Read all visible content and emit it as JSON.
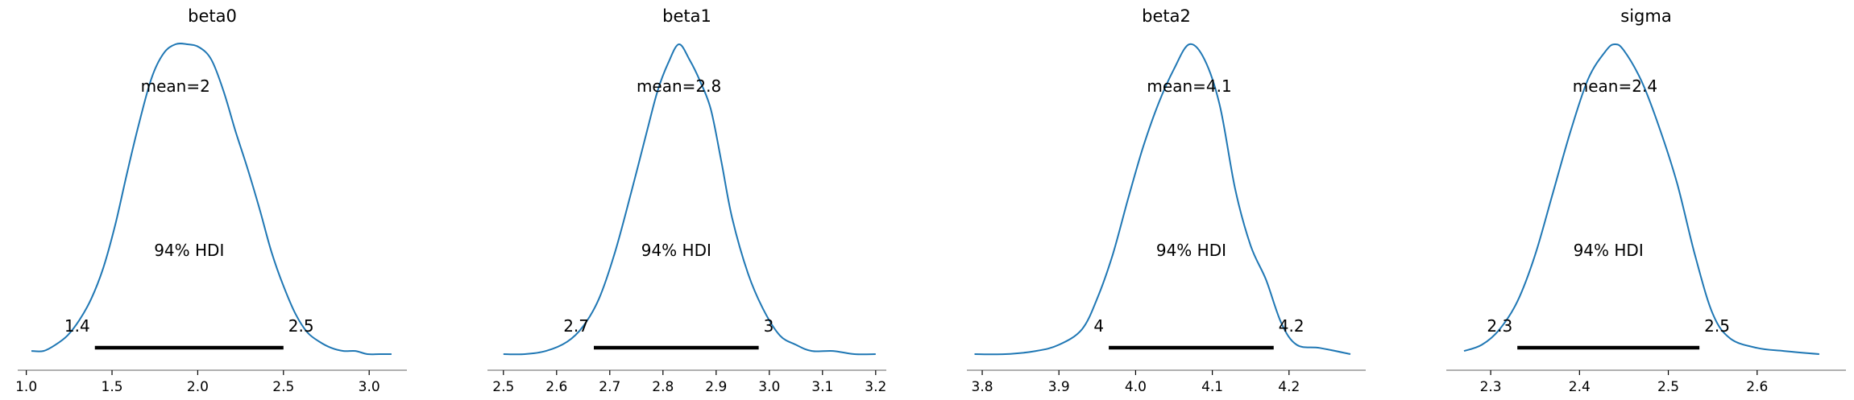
{
  "figure": {
    "colors": {
      "density": "#1f77b4",
      "hdi": "#000000",
      "axis": "#808080"
    }
  },
  "chart_data": [
    {
      "type": "line",
      "title": "beta0",
      "mean_label": "mean=2",
      "hdi_label": "94% HDI",
      "hdi": [
        1.4,
        2.5
      ],
      "hdi_low_label": "1.4",
      "hdi_high_label": "2.5",
      "xlim": [
        0.95,
        3.22
      ],
      "xticks": [
        1.0,
        1.5,
        2.0,
        2.5,
        3.0
      ],
      "xtick_labels": [
        "1.0",
        "1.5",
        "2.0",
        "2.5",
        "3.0"
      ],
      "ylim": [
        0,
        1.0
      ],
      "x": [
        1.03,
        1.1,
        1.17,
        1.24,
        1.31,
        1.38,
        1.45,
        1.52,
        1.59,
        1.66,
        1.73,
        1.8,
        1.87,
        1.94,
        2.01,
        2.08,
        2.15,
        2.22,
        2.29,
        2.36,
        2.43,
        2.5,
        2.57,
        2.64,
        2.71,
        2.78,
        2.85,
        2.92,
        2.99,
        3.06,
        3.13
      ],
      "y": [
        0.01,
        0.01,
        0.03,
        0.06,
        0.11,
        0.18,
        0.28,
        0.42,
        0.59,
        0.75,
        0.89,
        0.97,
        1.0,
        1.0,
        0.99,
        0.95,
        0.85,
        0.72,
        0.6,
        0.47,
        0.33,
        0.22,
        0.13,
        0.07,
        0.04,
        0.02,
        0.01,
        0.01,
        0.0,
        0.0,
        0.0
      ]
    },
    {
      "type": "line",
      "title": "beta1",
      "mean_label": "mean=2.8",
      "hdi_label": "94% HDI",
      "hdi": [
        2.67,
        2.98
      ],
      "hdi_low_label": "2.7",
      "hdi_high_label": "3",
      "xlim": [
        2.47,
        3.22
      ],
      "xticks": [
        2.5,
        2.6,
        2.7,
        2.8,
        2.9,
        3.0,
        3.1,
        3.2
      ],
      "xtick_labels": [
        "2.5",
        "2.6",
        "2.7",
        "2.8",
        "2.9",
        "3.0",
        "3.1",
        "3.2"
      ],
      "ylim": [
        0,
        1.0
      ],
      "x": [
        2.5,
        2.54,
        2.58,
        2.62,
        2.65,
        2.68,
        2.71,
        2.74,
        2.77,
        2.79,
        2.81,
        2.83,
        2.85,
        2.87,
        2.89,
        2.91,
        2.93,
        2.96,
        2.99,
        3.02,
        3.05,
        3.08,
        3.12,
        3.16,
        3.2
      ],
      "y": [
        0.0,
        0.0,
        0.01,
        0.04,
        0.09,
        0.18,
        0.33,
        0.52,
        0.72,
        0.85,
        0.94,
        1.0,
        0.95,
        0.88,
        0.79,
        0.62,
        0.44,
        0.26,
        0.14,
        0.06,
        0.03,
        0.01,
        0.01,
        0.0,
        0.0
      ]
    },
    {
      "type": "line",
      "title": "beta2",
      "mean_label": "mean=4.1",
      "hdi_label": "94% HDI",
      "hdi": [
        3.965,
        4.18
      ],
      "hdi_low_label": "4",
      "hdi_high_label": "4.2",
      "xlim": [
        3.78,
        4.3
      ],
      "xticks": [
        3.8,
        3.9,
        4.0,
        4.1,
        4.2
      ],
      "xtick_labels": [
        "3.8",
        "3.9",
        "4.0",
        "4.1",
        "4.2"
      ],
      "ylim": [
        0,
        1.0
      ],
      "x": [
        3.79,
        3.83,
        3.87,
        3.9,
        3.93,
        3.95,
        3.97,
        3.99,
        4.01,
        4.03,
        4.05,
        4.07,
        4.09,
        4.11,
        4.13,
        4.15,
        4.17,
        4.19,
        4.21,
        4.24,
        4.28
      ],
      "y": [
        0.0,
        0.0,
        0.01,
        0.03,
        0.08,
        0.18,
        0.32,
        0.5,
        0.67,
        0.81,
        0.92,
        1.0,
        0.95,
        0.8,
        0.53,
        0.35,
        0.24,
        0.1,
        0.03,
        0.02,
        0.0
      ]
    },
    {
      "type": "line",
      "title": "sigma",
      "mean_label": "mean=2.4",
      "hdi_label": "94% HDI",
      "hdi": [
        2.33,
        2.535
      ],
      "hdi_low_label": "2.3",
      "hdi_high_label": "2.5",
      "xlim": [
        2.25,
        2.7
      ],
      "xticks": [
        2.3,
        2.4,
        2.5,
        2.6
      ],
      "xtick_labels": [
        "2.3",
        "2.4",
        "2.5",
        "2.6"
      ],
      "ylim": [
        0,
        1.0
      ],
      "x": [
        2.27,
        2.29,
        2.31,
        2.33,
        2.35,
        2.37,
        2.39,
        2.41,
        2.43,
        2.44,
        2.45,
        2.47,
        2.49,
        2.51,
        2.53,
        2.55,
        2.57,
        2.6,
        2.63,
        2.67
      ],
      "y": [
        0.01,
        0.03,
        0.08,
        0.17,
        0.32,
        0.52,
        0.72,
        0.89,
        0.98,
        1.0,
        0.98,
        0.88,
        0.73,
        0.55,
        0.32,
        0.13,
        0.05,
        0.02,
        0.01,
        0.0
      ]
    }
  ]
}
